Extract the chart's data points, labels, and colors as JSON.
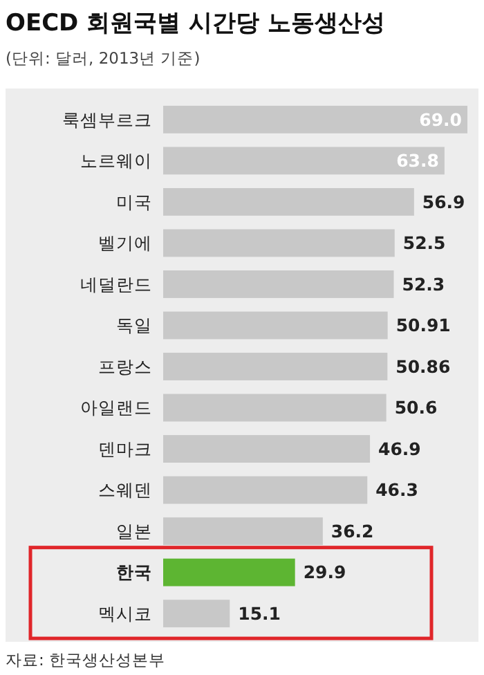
{
  "chart_data": {
    "type": "bar",
    "orientation": "horizontal",
    "title": "OECD 회원국별 시간당 노동생산성",
    "subtitle": "(단위: 달러, 2013년 기준)",
    "categories": [
      "룩셈부르크",
      "노르웨이",
      "미국",
      "벨기에",
      "네덜란드",
      "독일",
      "프랑스",
      "아일랜드",
      "덴마크",
      "스웨덴",
      "일본",
      "한국",
      "멕시코"
    ],
    "values": [
      69.0,
      63.8,
      56.9,
      52.5,
      52.3,
      50.91,
      50.86,
      50.6,
      46.9,
      46.3,
      36.2,
      29.9,
      15.1
    ],
    "value_labels": [
      "69.0",
      "63.8",
      "56.9",
      "52.5",
      "52.3",
      "50.91",
      "50.86",
      "50.6",
      "46.9",
      "46.3",
      "36.2",
      "29.9",
      "15.1"
    ],
    "colors": [
      "#c8c8c8",
      "#c8c8c8",
      "#c8c8c8",
      "#c8c8c8",
      "#c8c8c8",
      "#c8c8c8",
      "#c8c8c8",
      "#c8c8c8",
      "#c8c8c8",
      "#c8c8c8",
      "#c8c8c8",
      "#5db532",
      "#c8c8c8"
    ],
    "annotations": [
      "자료: 한국생산성본부"
    ]
  }
}
